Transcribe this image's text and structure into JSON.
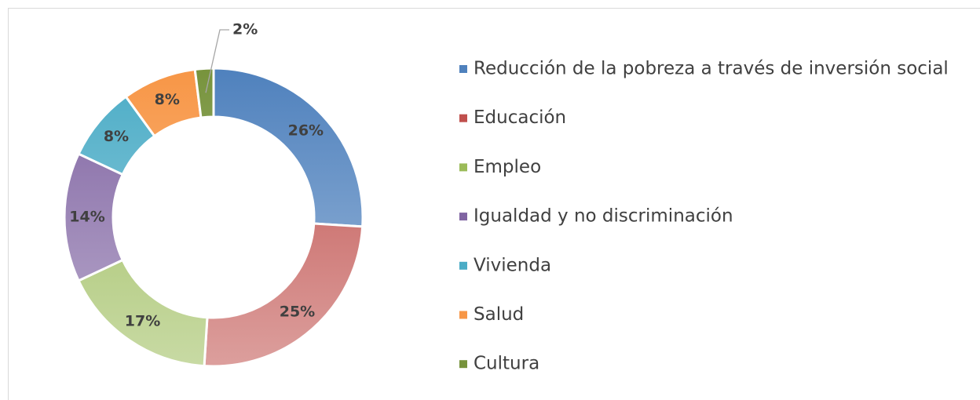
{
  "chart_data": {
    "type": "donut",
    "categories": [
      "Reducción de la pobreza a través de inversión social",
      "Educación",
      "Empleo",
      "Igualdad y no discriminación",
      "Vivienda",
      "Salud",
      "Cultura"
    ],
    "values": [
      26,
      25,
      17,
      14,
      8,
      8,
      2
    ],
    "value_labels": [
      "26%",
      "25%",
      "17%",
      "14%",
      "8%",
      "8%",
      "2%"
    ],
    "colors": [
      "#4f81bd",
      "#c0504d",
      "#9bbb59",
      "#8064a2",
      "#4bacc6",
      "#f79646",
      "#77933c"
    ],
    "legend": "right"
  }
}
